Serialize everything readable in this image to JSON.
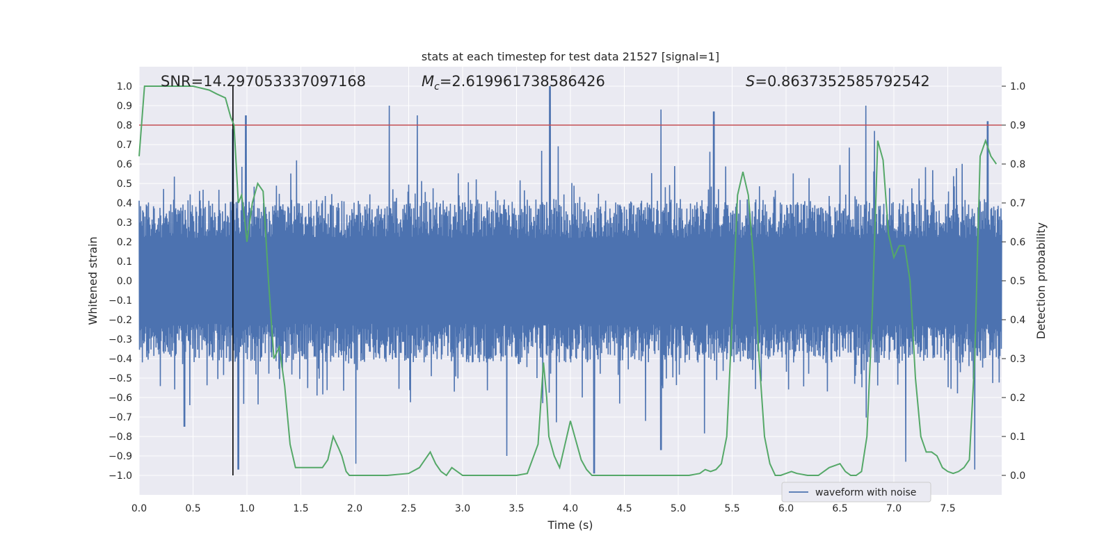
{
  "chart_data": {
    "type": "line",
    "title": "stats at each timestep for test data 21527 [signal=1]",
    "xlabel": "Time (s)",
    "ylabel": "Whitened strain",
    "y2label": "Detection probability",
    "xlim": [
      0.0,
      8.0
    ],
    "ylim": [
      -1.1,
      1.1
    ],
    "y2lim": [
      -0.05,
      1.05
    ],
    "xticks": [
      "0.0",
      "0.5",
      "1.0",
      "1.5",
      "2.0",
      "2.5",
      "3.0",
      "3.5",
      "4.0",
      "4.5",
      "5.0",
      "5.5",
      "6.0",
      "6.5",
      "7.0",
      "7.5"
    ],
    "yticks": [
      "1.0",
      "0.9",
      "0.8",
      "0.7",
      "0.6",
      "0.5",
      "0.4",
      "0.3",
      "0.2",
      "0.1",
      "0.0",
      "−0.1",
      "−0.2",
      "−0.3",
      "−0.4",
      "−0.5",
      "−0.6",
      "−0.7",
      "−0.8",
      "−0.9",
      "−1.0"
    ],
    "y2ticks": [
      "1.0",
      "0.9",
      "0.8",
      "0.7",
      "0.6",
      "0.5",
      "0.4",
      "0.3",
      "0.2",
      "0.1",
      "0.0"
    ],
    "annotations": {
      "snr": "SNR=14.297053337097168",
      "mc_symbol": "M",
      "mc_sub": "c",
      "mc_value": "=2.619961738586426",
      "s_symbol": "S",
      "s_value": "=0.8637352585792542"
    },
    "threshold": {
      "value": 0.8,
      "color": "#c44e52"
    },
    "marker_time": 0.87,
    "legend": {
      "label": "waveform with noise",
      "location": "lower-right"
    },
    "series": [
      {
        "name": "waveform with noise",
        "axis": "left",
        "color": "#4c72b0",
        "style": "dense noisy waveform, bulk amplitude about ±0.4 with spikes up to about ±1.0",
        "x_range": [
          0.0,
          8.0
        ],
        "peaks_positive": [
          [
            0.87,
            0.78
          ],
          [
            0.99,
            0.85
          ],
          [
            2.32,
            0.9
          ],
          [
            2.58,
            0.85
          ],
          [
            3.81,
            1.0
          ],
          [
            4.84,
            0.88
          ],
          [
            5.33,
            0.87
          ],
          [
            6.74,
            0.9
          ],
          [
            7.87,
            0.82
          ]
        ],
        "peaks_negative": [
          [
            0.42,
            -0.75
          ],
          [
            0.92,
            -0.97
          ],
          [
            2.01,
            -0.94
          ],
          [
            3.41,
            -0.9
          ],
          [
            4.22,
            -0.99
          ],
          [
            4.84,
            -0.87
          ],
          [
            7.11,
            -0.93
          ],
          [
            7.75,
            -0.97
          ]
        ]
      },
      {
        "name": "detection probability",
        "axis": "right",
        "color": "#55a868",
        "x": [
          0.0,
          0.05,
          0.1,
          0.3,
          0.5,
          0.65,
          0.72,
          0.8,
          0.85,
          0.88,
          0.92,
          0.95,
          0.97,
          1.0,
          1.05,
          1.1,
          1.15,
          1.2,
          1.25,
          1.3,
          1.35,
          1.4,
          1.45,
          1.5,
          1.55,
          1.6,
          1.7,
          1.75,
          1.8,
          1.85,
          1.88,
          1.92,
          1.95,
          2.0,
          2.1,
          2.3,
          2.5,
          2.6,
          2.65,
          2.7,
          2.75,
          2.8,
          2.85,
          2.9,
          2.95,
          3.0,
          3.1,
          3.3,
          3.5,
          3.6,
          3.7,
          3.75,
          3.78,
          3.8,
          3.85,
          3.9,
          3.95,
          4.0,
          4.05,
          4.1,
          4.15,
          4.2,
          4.3,
          4.5,
          4.7,
          4.9,
          5.1,
          5.2,
          5.25,
          5.3,
          5.35,
          5.4,
          5.45,
          5.5,
          5.55,
          5.6,
          5.65,
          5.7,
          5.75,
          5.8,
          5.85,
          5.9,
          5.95,
          6.0,
          6.05,
          6.1,
          6.2,
          6.3,
          6.4,
          6.5,
          6.55,
          6.6,
          6.65,
          6.7,
          6.75,
          6.8,
          6.85,
          6.9,
          6.95,
          7.0,
          7.05,
          7.1,
          7.15,
          7.2,
          7.25,
          7.3,
          7.35,
          7.4,
          7.45,
          7.5,
          7.55,
          7.6,
          7.65,
          7.7,
          7.75,
          7.8,
          7.85,
          7.9,
          7.95
        ],
        "y": [
          0.82,
          1.0,
          1.0,
          1.0,
          1.0,
          0.99,
          0.98,
          0.97,
          0.92,
          0.9,
          0.7,
          0.72,
          0.68,
          0.6,
          0.7,
          0.75,
          0.73,
          0.5,
          0.3,
          0.33,
          0.23,
          0.08,
          0.02,
          0.02,
          0.02,
          0.02,
          0.02,
          0.04,
          0.1,
          0.07,
          0.05,
          0.01,
          0.0,
          0.0,
          0.0,
          0.0,
          0.005,
          0.02,
          0.04,
          0.06,
          0.03,
          0.01,
          0.0,
          0.02,
          0.01,
          0.0,
          0.0,
          0.0,
          0.0,
          0.005,
          0.08,
          0.29,
          0.2,
          0.1,
          0.05,
          0.02,
          0.08,
          0.14,
          0.09,
          0.04,
          0.015,
          0.0,
          0.0,
          0.0,
          0.0,
          0.0,
          0.0,
          0.005,
          0.015,
          0.01,
          0.015,
          0.03,
          0.1,
          0.4,
          0.72,
          0.78,
          0.72,
          0.55,
          0.3,
          0.1,
          0.03,
          0.0,
          0.0,
          0.005,
          0.01,
          0.005,
          0.0,
          0.0,
          0.02,
          0.03,
          0.01,
          0.0,
          0.0,
          0.01,
          0.1,
          0.42,
          0.86,
          0.81,
          0.62,
          0.56,
          0.59,
          0.59,
          0.5,
          0.25,
          0.1,
          0.06,
          0.06,
          0.05,
          0.02,
          0.01,
          0.005,
          0.01,
          0.02,
          0.04,
          0.3,
          0.82,
          0.86,
          0.82,
          0.8
        ]
      }
    ]
  }
}
